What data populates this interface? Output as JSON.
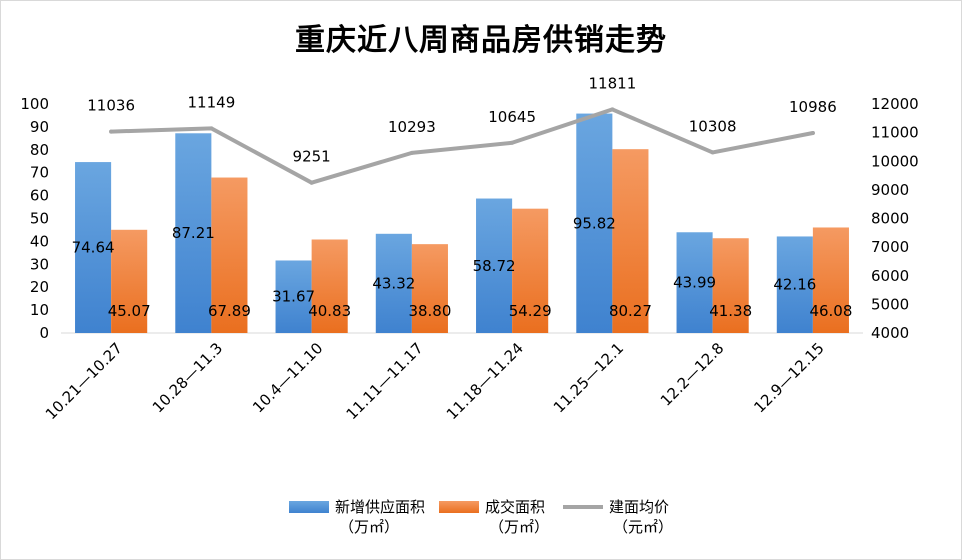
{
  "chart_data": {
    "type": "bar+line",
    "title": "重庆近八周商品房供销走势",
    "categories": [
      "10.21—10.27",
      "10.28—11.3",
      "10.4—11.10",
      "11.11—11.17",
      "11.18—11.24",
      "11.25—12.1",
      "12.2—12.8",
      "12.9—12.15"
    ],
    "left_axis": {
      "min": 0,
      "max": 100,
      "ticks": [
        "0",
        "10",
        "20",
        "30",
        "40",
        "50",
        "60",
        "70",
        "80",
        "90",
        "100"
      ]
    },
    "right_axis": {
      "min": 4000,
      "max": 12000,
      "ticks": [
        "4000",
        "5000",
        "6000",
        "7000",
        "8000",
        "9000",
        "10000",
        "11000",
        "12000"
      ]
    },
    "series": [
      {
        "name": "新增供应面积",
        "unit": "（万㎡）",
        "axis": "left",
        "kind": "bar",
        "color": "#4a8fd6",
        "values": [
          74.64,
          87.21,
          31.67,
          43.32,
          58.72,
          95.82,
          43.99,
          42.16
        ],
        "labels": [
          "74.64",
          "87.21",
          "31.67",
          "43.32",
          "58.72",
          "95.82",
          "43.99",
          "42.16"
        ]
      },
      {
        "name": "成交面积",
        "unit": "（万㎡）",
        "axis": "left",
        "kind": "bar",
        "color": "#ef7a2e",
        "values": [
          45.07,
          67.89,
          40.83,
          38.8,
          54.29,
          80.27,
          41.38,
          46.08
        ],
        "labels": [
          "45.07",
          "67.89",
          "40.83",
          "38.80",
          "54.29",
          "80.27",
          "41.38",
          "46.08"
        ]
      },
      {
        "name": "建面均价",
        "unit": "（元㎡）",
        "axis": "right",
        "kind": "line",
        "color": "#a5a5a5",
        "values": [
          11036,
          11149,
          9251,
          10293,
          10645,
          11811,
          10308,
          10986
        ],
        "labels": [
          "11036",
          "11149",
          "9251",
          "10293",
          "10645",
          "11811",
          "10308",
          "10986"
        ]
      }
    ],
    "legend_position": "bottom"
  }
}
